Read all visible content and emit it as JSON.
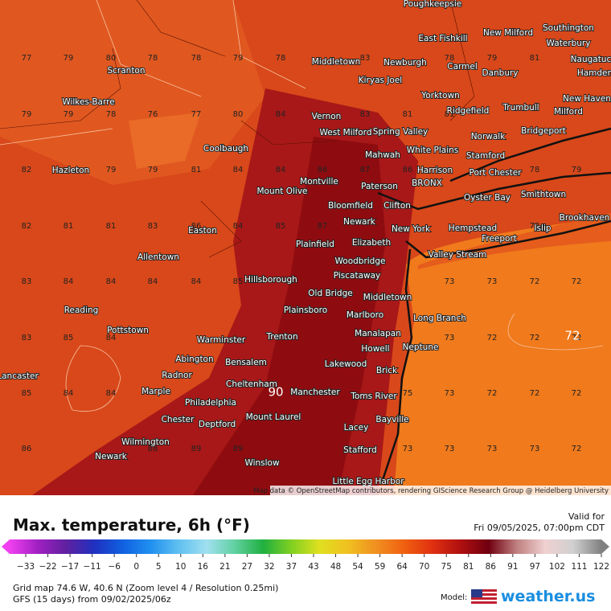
{
  "header": {
    "title": "Max. temperature, 6h (°F)",
    "valid_label": "Valid for",
    "valid_time": "Fri 09/05/2025, 07:00pm CDT"
  },
  "map": {
    "attribution": "Map data © OpenStreetMap contributors, rendering GIScience Research Group @ Heidelberg University",
    "grid_values": [
      [
        77,
        79,
        80,
        78,
        78,
        79,
        78,
        null,
        83,
        null,
        78,
        79,
        81,
        null
      ],
      [
        79,
        79,
        78,
        76,
        77,
        80,
        84,
        null,
        83,
        81,
        81,
        null,
        null,
        null
      ],
      [
        82,
        null,
        79,
        79,
        81,
        84,
        84,
        86,
        87,
        86,
        null,
        null,
        78,
        79
      ],
      [
        82,
        81,
        81,
        83,
        86,
        84,
        85,
        87,
        null,
        null,
        null,
        null,
        78,
        null
      ],
      [
        83,
        84,
        84,
        84,
        84,
        85,
        null,
        null,
        null,
        null,
        73,
        73,
        72,
        72
      ],
      [
        83,
        85,
        84,
        null,
        null,
        null,
        null,
        null,
        null,
        null,
        73,
        72,
        72,
        72
      ],
      [
        85,
        84,
        84,
        null,
        null,
        null,
        null,
        null,
        null,
        75,
        73,
        72,
        72,
        72
      ],
      [
        86,
        null,
        null,
        88,
        89,
        89,
        null,
        null,
        null,
        73,
        73,
        73,
        73,
        72
      ]
    ],
    "highlights": [
      90,
      72
    ],
    "cities": [
      "Poughkeepsie",
      "New Milford",
      "Southington",
      "East Fishkill",
      "Waterbury",
      "Naugatuck",
      "Middletown",
      "Newburgh",
      "Carmel",
      "Danbury",
      "Hamden",
      "Scranton",
      "Kiryas Joel",
      "Wilkes-Barre",
      "Yorktown",
      "New Haven",
      "Trumbull",
      "Ridgefield",
      "Milford",
      "Vernon",
      "Spring Valley",
      "West Milford",
      "Bridgeport",
      "Norwalk",
      "Coolbaugh",
      "White Plains",
      "Mahwah",
      "Stamford",
      "Hazleton",
      "Harrison",
      "Port Chester",
      "Montville",
      "Paterson",
      "BRONX",
      "Mount Olive",
      "Smithtown",
      "Oyster Bay",
      "Bloomfield",
      "Clifton",
      "Newark",
      "Brookhaven",
      "New York",
      "Hempstead",
      "Islip",
      "Easton",
      "Freeport",
      "Elizabeth",
      "Plainfield",
      "Valley Stream",
      "Allentown",
      "Woodbridge",
      "Piscataway",
      "Hillsborough",
      "Old Bridge",
      "Middletown",
      "Reading",
      "Plainsboro",
      "Marlboro",
      "Long Branch",
      "Pottstown",
      "Manalapan",
      "Trenton",
      "Warminster",
      "Neptune",
      "Howell",
      "Abington",
      "Bensalem",
      "Lakewood",
      "Brick",
      "Lancaster",
      "Radnor",
      "Cheltenham",
      "Manchester",
      "Toms River",
      "Marple",
      "Philadelphia",
      "Mount Laurel",
      "Chester",
      "Bayville",
      "Deptford",
      "Lacey",
      "Wilmington",
      "Stafford",
      "Newark",
      "Winslow",
      "Little Egg Harbor"
    ]
  },
  "legend": {
    "ticks": [
      {
        "value": -33,
        "label": "−33"
      },
      {
        "value": -22,
        "label": "−22"
      },
      {
        "value": -17,
        "label": "−17"
      },
      {
        "value": -11,
        "label": "−11"
      },
      {
        "value": -6,
        "label": "−6"
      },
      0,
      5,
      10,
      16,
      21,
      27,
      32,
      37,
      43,
      48,
      54,
      59,
      64,
      70,
      75,
      81,
      86,
      91,
      97,
      102,
      111,
      122
    ],
    "colors": [
      "#f040f0",
      "#a020c0",
      "#6020a0",
      "#2030c0",
      "#1060e0",
      "#2090f0",
      "#60c0f0",
      "#a0e0f0",
      "#60d0a0",
      "#20b040",
      "#80d020",
      "#e0e020",
      "#f0c020",
      "#f09020",
      "#f06010",
      "#e03010",
      "#b01010",
      "#700010",
      "#c08080",
      "#f0d0d0",
      "#d0d0d0",
      "#808080"
    ]
  },
  "footer": {
    "grid_info": "Grid map 74.6 W, 40.6 N (Zoom level 4 / Resolution 0.25mi)",
    "model_run": "GFS (15 days) from  09/02/2025/06z",
    "model_label": "Model:",
    "brand": "weather.us"
  }
}
